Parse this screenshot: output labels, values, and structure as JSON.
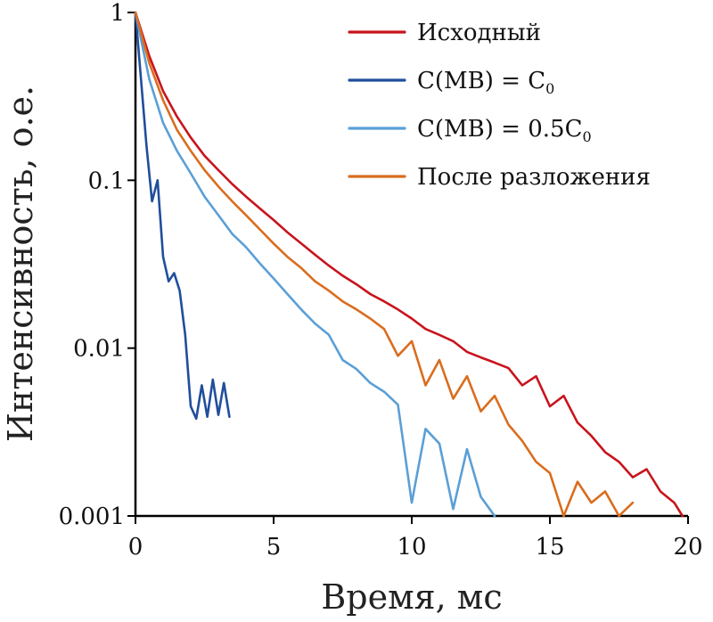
{
  "chart_data": {
    "type": "line",
    "title": "",
    "xlabel": "Время, мс",
    "ylabel": "Интенсивность, о.е.",
    "xlim": [
      0,
      20
    ],
    "ylim": [
      0.001,
      1
    ],
    "yscale": "log",
    "grid": false,
    "legend_position": "top-right",
    "x_ticks": [
      0,
      5,
      10,
      15,
      20
    ],
    "x_tick_labels": [
      "0",
      "5",
      "10",
      "15",
      "20"
    ],
    "y_ticks": [
      0.001,
      0.01,
      0.1,
      1
    ],
    "y_tick_labels": [
      "0.001",
      "0.01",
      "0.1",
      "1"
    ],
    "series": [
      {
        "name": "Исходный",
        "name_sub": "",
        "color": "#c8141c",
        "x": [
          0,
          0.5,
          1,
          1.5,
          2,
          2.5,
          3,
          3.5,
          4,
          4.5,
          5,
          5.5,
          6,
          6.5,
          7,
          7.5,
          8,
          8.5,
          9,
          9.5,
          10,
          10.5,
          11,
          11.5,
          12,
          12.5,
          13,
          13.5,
          14,
          14.5,
          15,
          15.5,
          16,
          16.5,
          17,
          17.5,
          18,
          18.5,
          19,
          19.5,
          19.8
        ],
        "y": [
          1,
          0.55,
          0.34,
          0.24,
          0.18,
          0.14,
          0.115,
          0.095,
          0.08,
          0.068,
          0.058,
          0.049,
          0.042,
          0.036,
          0.031,
          0.027,
          0.024,
          0.021,
          0.019,
          0.017,
          0.015,
          0.013,
          0.012,
          0.011,
          0.0095,
          0.0088,
          0.0082,
          0.0076,
          0.006,
          0.0068,
          0.0045,
          0.0052,
          0.0036,
          0.003,
          0.0024,
          0.0021,
          0.0017,
          0.0019,
          0.0014,
          0.0012,
          0.001
        ]
      },
      {
        "name": "C(MB) = C",
        "name_sub": "0",
        "color": "#1f4e9c",
        "x": [
          0,
          0.2,
          0.4,
          0.6,
          0.8,
          1.0,
          1.2,
          1.4,
          1.6,
          1.8,
          2.0,
          2.2,
          2.4,
          2.6,
          2.8,
          3.0,
          3.2,
          3.4
        ],
        "y": [
          1,
          0.4,
          0.16,
          0.075,
          0.1,
          0.035,
          0.025,
          0.028,
          0.022,
          0.012,
          0.0045,
          0.0038,
          0.006,
          0.0039,
          0.0065,
          0.004,
          0.0062,
          0.0039
        ]
      },
      {
        "name": "C(MB) = 0.5C",
        "name_sub": "0",
        "color": "#5b9fd6",
        "x": [
          0,
          0.5,
          1,
          1.5,
          2,
          2.5,
          3,
          3.5,
          4,
          4.5,
          5,
          5.5,
          6,
          6.5,
          7,
          7.5,
          8,
          8.5,
          9,
          9.5,
          10,
          10.5,
          11,
          11.5,
          12,
          12.5,
          13
        ],
        "y": [
          1,
          0.4,
          0.22,
          0.15,
          0.11,
          0.08,
          0.062,
          0.048,
          0.04,
          0.032,
          0.026,
          0.021,
          0.017,
          0.014,
          0.012,
          0.0085,
          0.0075,
          0.0062,
          0.0055,
          0.0046,
          0.0012,
          0.0033,
          0.0027,
          0.0011,
          0.0025,
          0.0013,
          0.001
        ]
      },
      {
        "name": "После разложения",
        "name_sub": "",
        "color": "#d96d1e",
        "x": [
          0,
          0.5,
          1,
          1.5,
          2,
          2.5,
          3,
          3.5,
          4,
          4.5,
          5,
          5.5,
          6,
          6.5,
          7,
          7.5,
          8,
          8.5,
          9,
          9.5,
          10,
          10.5,
          11,
          11.5,
          12,
          12.5,
          13,
          13.5,
          14,
          14.5,
          15,
          15.5,
          16,
          16.5,
          17,
          17.5,
          18
        ],
        "y": [
          1,
          0.5,
          0.3,
          0.2,
          0.15,
          0.115,
          0.092,
          0.075,
          0.062,
          0.051,
          0.042,
          0.035,
          0.03,
          0.025,
          0.022,
          0.019,
          0.017,
          0.015,
          0.013,
          0.009,
          0.011,
          0.006,
          0.0085,
          0.005,
          0.0068,
          0.0042,
          0.0052,
          0.0035,
          0.0028,
          0.0021,
          0.0018,
          0.001,
          0.0016,
          0.0012,
          0.0014,
          0.001,
          0.0012
        ]
      }
    ]
  }
}
